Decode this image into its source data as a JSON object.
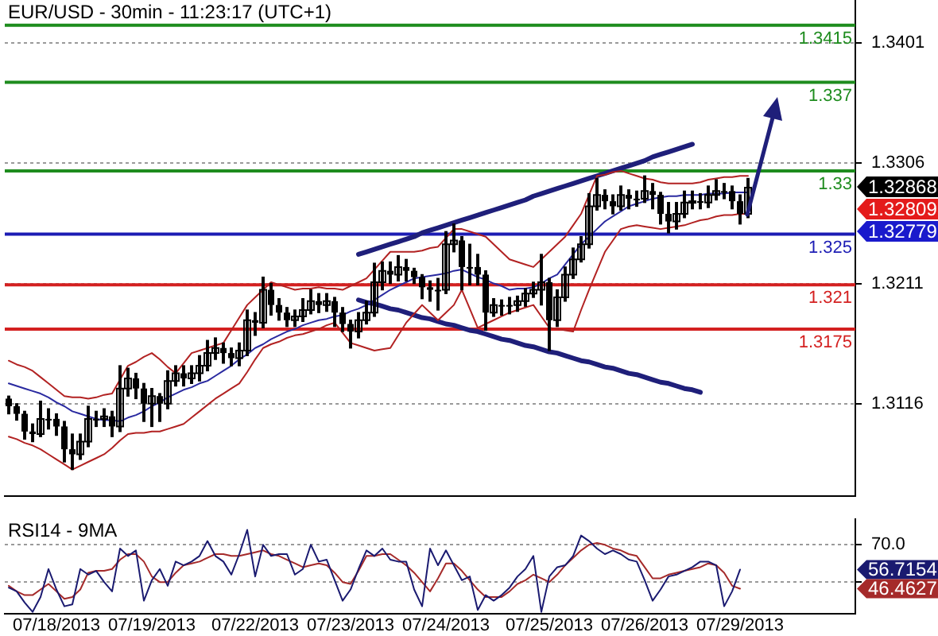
{
  "chart_data": [
    {
      "type": "candlestick",
      "title": "EUR/USD - 30min - 11:23:17 (UTC+1)",
      "color": "#000000",
      "categories": [
        null,
        null,
        null,
        null,
        null,
        null,
        null,
        null,
        null,
        null,
        null,
        null,
        null,
        null,
        null,
        null,
        null,
        null,
        null,
        null,
        null,
        null,
        null,
        null,
        null,
        null,
        null,
        null,
        null,
        null,
        null,
        null,
        null,
        null,
        null,
        null,
        null,
        null,
        null,
        null,
        null,
        null,
        null,
        null,
        null,
        null,
        null,
        null,
        null,
        null,
        null,
        null,
        null,
        null,
        null,
        null,
        null,
        null,
        null,
        null,
        null,
        null,
        null,
        null,
        null,
        null,
        null,
        null,
        null,
        null,
        null,
        null,
        null,
        null,
        null,
        null,
        null,
        null,
        null,
        null,
        null,
        null,
        null,
        null,
        null,
        null,
        null,
        null,
        null,
        null,
        null,
        null,
        null,
        null,
        null,
        null,
        null,
        null,
        null,
        null,
        null,
        null,
        null,
        null,
        null,
        null,
        null
      ],
      "ohlc": [
        [
          1.312,
          1.3122,
          1.3108,
          1.3114
        ],
        [
          1.3114,
          1.3116,
          1.3103,
          1.3108
        ],
        [
          1.3108,
          1.311,
          1.3088,
          1.3094
        ],
        [
          1.3094,
          1.31,
          1.3086,
          1.3092
        ],
        [
          1.3092,
          1.3118,
          1.309,
          1.3104
        ],
        [
          1.3104,
          1.3112,
          1.3096,
          1.3104
        ],
        [
          1.3104,
          1.3108,
          1.3091,
          1.3098
        ],
        [
          1.3098,
          1.3102,
          1.307,
          1.308
        ],
        [
          1.308,
          1.3092,
          1.3064,
          1.3076
        ],
        [
          1.3076,
          1.3092,
          1.3072,
          1.3086
        ],
        [
          1.3086,
          1.3114,
          1.3082,
          1.3104
        ],
        [
          1.3104,
          1.311,
          1.3098,
          1.3104
        ],
        [
          1.3104,
          1.3112,
          1.3098,
          1.3106
        ],
        [
          1.3106,
          1.311,
          1.309,
          1.3098
        ],
        [
          1.3098,
          1.3146,
          1.3094,
          1.3128
        ],
        [
          1.3128,
          1.3144,
          1.3122,
          1.3136
        ],
        [
          1.3136,
          1.314,
          1.312,
          1.3128
        ],
        [
          1.3128,
          1.3132,
          1.3102,
          1.3116
        ],
        [
          1.3116,
          1.3128,
          1.3098,
          1.3122
        ],
        [
          1.3122,
          1.3124,
          1.3102,
          1.3116
        ],
        [
          1.3116,
          1.3142,
          1.3112,
          1.3134
        ],
        [
          1.3134,
          1.3146,
          1.313,
          1.314
        ],
        [
          1.314,
          1.3146,
          1.313,
          1.3136
        ],
        [
          1.3136,
          1.3146,
          1.3132,
          1.314
        ],
        [
          1.314,
          1.3154,
          1.3134,
          1.3146
        ],
        [
          1.3146,
          1.3166,
          1.3142,
          1.3156
        ],
        [
          1.3156,
          1.3168,
          1.3151,
          1.316
        ],
        [
          1.316,
          1.3164,
          1.3148,
          1.3156
        ],
        [
          1.3156,
          1.316,
          1.3146,
          1.3152
        ],
        [
          1.3152,
          1.3164,
          1.3146,
          1.3158
        ],
        [
          1.3158,
          1.319,
          1.3154,
          1.3182
        ],
        [
          1.3182,
          1.3188,
          1.317,
          1.318
        ],
        [
          1.318,
          1.3216,
          1.3176,
          1.3206
        ],
        [
          1.3206,
          1.3211,
          1.3186,
          1.3194
        ],
        [
          1.3194,
          1.3199,
          1.3182,
          1.3188
        ],
        [
          1.3188,
          1.3192,
          1.3177,
          1.3182
        ],
        [
          1.3182,
          1.319,
          1.3177,
          1.3185
        ],
        [
          1.3185,
          1.3199,
          1.3181,
          1.319
        ],
        [
          1.319,
          1.3206,
          1.3187,
          1.3197
        ],
        [
          1.3197,
          1.3203,
          1.3188,
          1.3194
        ],
        [
          1.3194,
          1.3203,
          1.3189,
          1.3197
        ],
        [
          1.3197,
          1.32,
          1.3177,
          1.3188
        ],
        [
          1.3188,
          1.3192,
          1.3173,
          1.3179
        ],
        [
          1.3179,
          1.3182,
          1.316,
          1.3173
        ],
        [
          1.3173,
          1.3188,
          1.3168,
          1.3182
        ],
        [
          1.3182,
          1.3197,
          1.3179,
          1.3188
        ],
        [
          1.3188,
          1.3227,
          1.3185,
          1.3212
        ],
        [
          1.3212,
          1.3228,
          1.3206,
          1.3221
        ],
        [
          1.3221,
          1.3228,
          1.3211,
          1.3218
        ],
        [
          1.3218,
          1.3233,
          1.3213,
          1.3224
        ],
        [
          1.3224,
          1.323,
          1.3213,
          1.3221
        ],
        [
          1.3221,
          1.3223,
          1.3211,
          1.3216
        ],
        [
          1.3216,
          1.3218,
          1.3199,
          1.3208
        ],
        [
          1.3208,
          1.3213,
          1.3197,
          1.3206
        ],
        [
          1.3206,
          1.3215,
          1.319,
          1.3206
        ],
        [
          1.3206,
          1.3252,
          1.3203,
          1.3242
        ],
        [
          1.3242,
          1.3258,
          1.3236,
          1.3245
        ],
        [
          1.3245,
          1.3248,
          1.3206,
          1.3224
        ],
        [
          1.3224,
          1.3242,
          1.321,
          1.3224
        ],
        [
          1.3224,
          1.3234,
          1.321,
          1.3218
        ],
        [
          1.3218,
          1.3221,
          1.3174,
          1.3188
        ],
        [
          1.3188,
          1.3199,
          1.3185,
          1.3194
        ],
        [
          1.3194,
          1.3198,
          1.3186,
          1.3194
        ],
        [
          1.3194,
          1.32,
          1.3187,
          1.3194
        ],
        [
          1.3194,
          1.3201,
          1.3189,
          1.3197
        ],
        [
          1.3197,
          1.3207,
          1.3193,
          1.3203
        ],
        [
          1.3203,
          1.3212,
          1.32,
          1.3206
        ],
        [
          1.3206,
          1.3234,
          1.3194,
          1.3212
        ],
        [
          1.3212,
          1.3215,
          1.3158,
          1.3182
        ],
        [
          1.3182,
          1.3206,
          1.3177,
          1.32
        ],
        [
          1.32,
          1.3224,
          1.3197,
          1.3218
        ],
        [
          1.3218,
          1.3239,
          1.3215,
          1.323
        ],
        [
          1.323,
          1.3248,
          1.3228,
          1.3242
        ],
        [
          1.3242,
          1.3282,
          1.3239,
          1.3272
        ],
        [
          1.3272,
          1.3294,
          1.3269,
          1.3281
        ],
        [
          1.3281,
          1.3285,
          1.327,
          1.3276
        ],
        [
          1.3276,
          1.3281,
          1.3266,
          1.3272
        ],
        [
          1.3272,
          1.3288,
          1.3269,
          1.3281
        ],
        [
          1.3281,
          1.3285,
          1.327,
          1.3278
        ],
        [
          1.3278,
          1.3284,
          1.3272,
          1.3278
        ],
        [
          1.3278,
          1.3296,
          1.3275,
          1.3284
        ],
        [
          1.3284,
          1.329,
          1.327,
          1.3281
        ],
        [
          1.3281,
          1.3283,
          1.3258,
          1.3266
        ],
        [
          1.3266,
          1.3275,
          1.3251,
          1.326
        ],
        [
          1.326,
          1.3275,
          1.3254,
          1.3266
        ],
        [
          1.3266,
          1.3284,
          1.3263,
          1.3275
        ],
        [
          1.3275,
          1.3284,
          1.327,
          1.3276
        ],
        [
          1.3276,
          1.3282,
          1.327,
          1.3275
        ],
        [
          1.3275,
          1.3288,
          1.3271,
          1.3281
        ],
        [
          1.3281,
          1.3293,
          1.3277,
          1.3284
        ],
        [
          1.3284,
          1.329,
          1.3278,
          1.3284
        ],
        [
          1.3284,
          1.3288,
          1.327,
          1.3276
        ],
        [
          1.3276,
          1.3281,
          1.3258,
          1.3266
        ],
        [
          1.3266,
          1.3294,
          1.3263,
          1.32868
        ],
        null,
        null,
        null,
        null,
        null,
        null,
        null,
        null,
        null,
        null,
        null,
        null,
        null
      ],
      "series": [
        {
          "type": "line",
          "color": "#b22222",
          "values": [
            1.315,
            1.3147,
            1.3145,
            1.3142,
            1.3137,
            1.3132,
            1.3127,
            1.3122,
            1.3121,
            1.3121,
            1.312,
            1.3121,
            1.3123,
            1.3124,
            1.3135,
            1.3146,
            1.3149,
            1.3153,
            1.3156,
            1.3151,
            1.3145,
            1.314,
            1.3148,
            1.3156,
            1.3158,
            1.316,
            1.3162,
            1.3164,
            1.3174,
            1.3184,
            1.3194,
            1.32,
            1.3206,
            1.3212,
            1.321,
            1.3208,
            1.3206,
            1.3207,
            1.3207,
            1.3208,
            1.3207,
            1.3207,
            1.3206,
            1.3209,
            1.3212,
            1.3215,
            1.3222,
            1.3229,
            1.3236,
            1.3236,
            1.3236,
            1.3236,
            1.3237,
            1.3239,
            1.324,
            1.3247,
            1.3254,
            1.3254,
            1.3252,
            1.325,
            1.3248,
            1.3242,
            1.3236,
            1.323,
            1.3228,
            1.3226,
            1.3224,
            1.323,
            1.3236,
            1.3242,
            1.3248,
            1.3257,
            1.3266,
            1.3281,
            1.3296,
            1.3297,
            1.3299,
            1.33,
            1.3298,
            1.3296,
            1.3294,
            1.3293,
            1.3291,
            1.329,
            1.329,
            1.329,
            1.329,
            1.3291,
            1.3293,
            1.3294,
            1.3295,
            1.3295,
            1.3296,
            1.3296,
            null,
            null,
            null,
            null,
            null,
            null,
            null,
            null,
            null,
            null,
            null,
            null,
            null
          ]
        },
        {
          "type": "line",
          "color": "#b22222",
          "values": [
            1.309,
            1.3088,
            1.3085,
            1.3083,
            1.308,
            1.3076,
            1.3072,
            1.3068,
            1.3064,
            1.3067,
            1.307,
            1.3073,
            1.3076,
            1.3081,
            1.3087,
            1.3092,
            1.3093,
            1.3093,
            1.3094,
            1.3094,
            1.3096,
            1.3098,
            1.31,
            1.3105,
            1.311,
            1.3115,
            1.312,
            1.3124,
            1.3128,
            1.3132,
            1.3141,
            1.3151,
            1.316,
            1.3163,
            1.3165,
            1.3168,
            1.317,
            1.3171,
            1.3173,
            1.3175,
            1.3178,
            1.318,
            1.3172,
            1.3164,
            1.3162,
            1.316,
            1.3158,
            1.3159,
            1.316,
            1.317,
            1.318,
            1.3187,
            1.3194,
            1.3188,
            1.3182,
            1.3188,
            1.3194,
            1.3206,
            1.3191,
            1.3176,
            1.3179,
            1.3182,
            1.3185,
            1.3188,
            1.319,
            1.3192,
            1.3194,
            1.3185,
            1.3176,
            1.3175,
            1.3174,
            1.3173,
            1.319,
            1.3206,
            1.3221,
            1.3236,
            1.3245,
            1.3254,
            1.3256,
            1.3257,
            1.3256,
            1.3255,
            1.3254,
            1.3255,
            1.3256,
            1.3257,
            1.3259,
            1.3261,
            1.3262,
            1.3264,
            1.3265,
            1.3265,
            1.3266,
            1.3266,
            null,
            null,
            null,
            null,
            null,
            null,
            null,
            null,
            null,
            null,
            null,
            null,
            null
          ]
        },
        {
          "type": "line",
          "color": "#2a2aa0",
          "values": [
            1.3132,
            1.313,
            1.3128,
            1.3126,
            1.3124,
            1.3121,
            1.3117,
            1.3114,
            1.311,
            1.3108,
            1.3106,
            1.3104,
            1.3103,
            1.3103,
            1.3102,
            1.3105,
            1.3107,
            1.311,
            1.3114,
            1.3117,
            1.3121,
            1.3124,
            1.3127,
            1.3129,
            1.3132,
            1.3134,
            1.3138,
            1.3142,
            1.3146,
            1.3151,
            1.3155,
            1.316,
            1.3163,
            1.3167,
            1.317,
            1.3173,
            1.3175,
            1.3178,
            1.318,
            1.3182,
            1.3183,
            1.3185,
            1.3186,
            1.3189,
            1.3191,
            1.3194,
            1.3198,
            1.3202,
            1.3206,
            1.3209,
            1.3212,
            1.3215,
            1.3216,
            1.3217,
            1.3218,
            1.3219,
            1.3221,
            1.3222,
            1.3219,
            1.3216,
            1.3214,
            1.3211,
            1.3209,
            1.3206,
            1.3207,
            1.3207,
            1.3208,
            1.3211,
            1.3215,
            1.3218,
            1.3226,
            1.3234,
            1.3242,
            1.3248,
            1.3254,
            1.326,
            1.3264,
            1.3268,
            1.3272,
            1.3274,
            1.3276,
            1.3278,
            1.3279,
            1.328,
            1.328,
            1.3281,
            1.3281,
            1.3281,
            1.3282,
            1.3282,
            1.3282,
            1.3283,
            1.3283,
            1.3283,
            null,
            null,
            null,
            null,
            null,
            null,
            null,
            null,
            null,
            null,
            null,
            null,
            null
          ]
        },
        {
          "type": "line",
          "color": "#1f1f7a",
          "values": [
            null,
            null,
            null,
            null,
            null,
            null,
            null,
            null,
            null,
            null,
            null,
            null,
            null,
            null,
            null,
            null,
            null,
            null,
            null,
            null,
            null,
            null,
            null,
            null,
            null,
            null,
            null,
            null,
            null,
            null,
            null,
            null,
            null,
            null,
            null,
            null,
            null,
            null,
            null,
            null,
            null,
            null,
            null,
            null,
            1.3234,
            1.3236,
            1.3238,
            1.324,
            1.3242,
            1.3244,
            1.3246,
            1.3248,
            1.3251,
            1.3253,
            1.3255,
            1.3257,
            1.3259,
            1.3261,
            1.3263,
            1.3265,
            1.3267,
            1.3269,
            1.3271,
            1.3273,
            1.3275,
            1.3277,
            1.328,
            1.3282,
            1.3284,
            1.3286,
            1.3288,
            1.329,
            1.3292,
            1.3294,
            1.3296,
            1.3298,
            1.33,
            1.3302,
            1.3304,
            1.3306,
            1.3308,
            1.3311,
            1.3313,
            1.3315,
            1.3317,
            1.3319,
            1.3321,
            null,
            null,
            null,
            null,
            null,
            null,
            null,
            null,
            null,
            null,
            null,
            null,
            null,
            null,
            null,
            null,
            null,
            null,
            null,
            null
          ]
        },
        {
          "type": "line",
          "color": "#1f1f7a",
          "values": [
            null,
            null,
            null,
            null,
            null,
            null,
            null,
            null,
            null,
            null,
            null,
            null,
            null,
            null,
            null,
            null,
            null,
            null,
            null,
            null,
            null,
            null,
            null,
            null,
            null,
            null,
            null,
            null,
            null,
            null,
            null,
            null,
            null,
            null,
            null,
            null,
            null,
            null,
            null,
            null,
            null,
            null,
            null,
            null,
            1.3198,
            1.3196,
            1.3195,
            1.3193,
            1.3191,
            1.319,
            1.3188,
            1.3186,
            1.3184,
            1.3183,
            1.3181,
            1.3179,
            1.3178,
            1.3176,
            1.3174,
            1.3173,
            1.3171,
            1.3169,
            1.3167,
            1.3166,
            1.3164,
            1.3162,
            1.3161,
            1.3159,
            1.3157,
            1.3156,
            1.3154,
            1.3152,
            1.315,
            1.3149,
            1.3147,
            1.3145,
            1.3144,
            1.3142,
            1.314,
            1.3139,
            1.3137,
            1.3135,
            1.3133,
            1.3132,
            1.313,
            1.3128,
            1.3127,
            1.3125,
            null,
            null,
            null,
            null,
            null,
            null,
            null,
            null,
            null,
            null,
            null,
            null,
            null,
            null,
            null,
            null,
            null,
            null,
            null
          ]
        }
      ],
      "ylim": [
        1.3043,
        1.3435
      ],
      "yticks": [
        1.3401,
        1.3306,
        1.3211,
        1.3116
      ],
      "grid": "y",
      "ref_lines": [
        {
          "axis": "y",
          "value": 1.3415,
          "label": "1.3415",
          "color": "#1e8c1e"
        },
        {
          "axis": "y",
          "value": 1.337,
          "label": "1.337",
          "color": "#1e8c1e"
        },
        {
          "axis": "y",
          "value": 1.33,
          "label": "1.33",
          "color": "#1e8c1e"
        },
        {
          "axis": "y",
          "value": 1.325,
          "label": "1.325",
          "color": "#1c1cb4"
        },
        {
          "axis": "y",
          "value": 1.321,
          "label": "1.321",
          "color": "#d42020"
        },
        {
          "axis": "y",
          "value": 1.3175,
          "label": "1.3175",
          "color": "#d42020"
        }
      ],
      "annotations": [
        "1.32868",
        "1.32809",
        "1.32779"
      ]
    },
    {
      "type": "line",
      "title": "RSI14 - 9MA",
      "categories": [
        null,
        null,
        null,
        null,
        null,
        null,
        "07/18/2013",
        null,
        null,
        null,
        null,
        null,
        null,
        null,
        null,
        null,
        null,
        null,
        "07/19/2013",
        null,
        null,
        null,
        null,
        null,
        null,
        null,
        null,
        null,
        null,
        null,
        null,
        "07/22/2013",
        null,
        null,
        null,
        null,
        null,
        null,
        null,
        null,
        null,
        null,
        null,
        "07/23/2013",
        null,
        null,
        null,
        null,
        null,
        null,
        null,
        null,
        null,
        null,
        null,
        "07/24/2013",
        null,
        null,
        null,
        null,
        null,
        null,
        null,
        null,
        null,
        null,
        null,
        null,
        "07/25/2013",
        null,
        null,
        null,
        null,
        null,
        null,
        null,
        null,
        null,
        null,
        null,
        "07/26/2013",
        null,
        null,
        null,
        null,
        null,
        null,
        null,
        null,
        null,
        null,
        null,
        "07/29/2013",
        null,
        null,
        null,
        null,
        null,
        null,
        null,
        null,
        null,
        null,
        null,
        null,
        null,
        null
      ],
      "series": [
        {
          "color": "#1a1a70",
          "values": [
            47,
            45,
            39,
            34,
            42,
            57,
            46,
            37,
            38,
            57,
            54,
            56,
            50,
            45,
            68,
            64,
            67,
            40,
            51,
            57,
            48,
            61,
            59,
            61,
            64,
            72,
            64,
            61,
            54,
            65,
            78,
            53,
            70,
            64,
            65,
            65,
            54,
            57,
            70,
            61,
            62,
            51,
            40,
            46,
            57,
            67,
            64,
            68,
            62,
            61,
            61,
            46,
            37,
            68,
            59,
            67,
            59,
            51,
            53,
            35,
            43,
            40,
            43,
            47,
            53,
            57,
            64,
            34,
            53,
            58,
            59,
            64,
            75,
            72,
            68,
            65,
            67,
            65,
            62,
            61,
            51,
            40,
            46,
            53,
            54,
            56,
            58,
            61,
            61,
            59,
            37,
            45,
            56.7154,
            null,
            null,
            null,
            null,
            null,
            null,
            null,
            null,
            null,
            null,
            null,
            null,
            null,
            null
          ]
        },
        {
          "color": "#a52a2a",
          "values": [
            48,
            45,
            43,
            43,
            46,
            49,
            45,
            41,
            42,
            46,
            55,
            56,
            56,
            57,
            62,
            65,
            65,
            61,
            53,
            50,
            50,
            55,
            59,
            60,
            61,
            63,
            65,
            65,
            64,
            64,
            65,
            66,
            67,
            65,
            64,
            62,
            60,
            58,
            59,
            60,
            59,
            55,
            50,
            49,
            56,
            64,
            64,
            65,
            65,
            62,
            59,
            55,
            50,
            45,
            52,
            60,
            60,
            56,
            51,
            46,
            42,
            42,
            42,
            45,
            49,
            51,
            54,
            52,
            50,
            54,
            59,
            63,
            67,
            70,
            71,
            70,
            68,
            67,
            65,
            64,
            58,
            52,
            52,
            54,
            55,
            56,
            57,
            58,
            60,
            59,
            55,
            48,
            46.4627,
            null,
            null,
            null,
            null,
            null,
            null,
            null,
            null,
            null,
            null,
            null,
            null,
            null,
            null
          ]
        }
      ],
      "ylim": [
        33,
        84.2
      ],
      "yticks": [
        {
          "value": 70,
          "label": "70.0"
        },
        {
          "value": 56.7154,
          "label": "56.7154"
        },
        {
          "value": 46.4627,
          "label": "46.4627"
        },
        {
          "value": 50,
          "label": null
        }
      ],
      "grid": "y"
    }
  ]
}
